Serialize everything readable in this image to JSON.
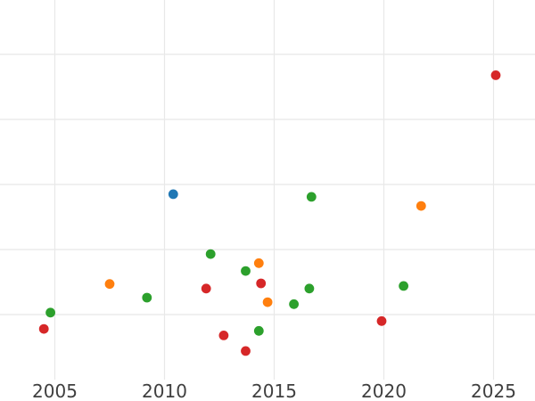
{
  "chart_data": {
    "type": "scatter",
    "title": "",
    "xlabel": "",
    "ylabel": "",
    "grid": true,
    "legend": "none visible",
    "x_tick_labels": [
      "2005",
      "2010",
      "2015",
      "2020",
      "2025"
    ],
    "x_tick_values": [
      2005,
      2010,
      2015,
      2020,
      2025
    ],
    "y_tick_labels": [],
    "y_axis_note": "no y tick labels visible in crop; y values given in gridline units (0 = bottom plot edge, 1 unit per horizontal gridline)",
    "y_gridline_units": [
      1,
      2,
      3,
      4,
      5
    ],
    "xlim": [
      2002.5,
      2026.9
    ],
    "ylim": [
      -0.33,
      5.84
    ],
    "marker": {
      "shape": "circle",
      "radius_px": 5.4
    },
    "series": [
      {
        "name": "blue",
        "color": "#1f77b4",
        "points": [
          [
            2010.4,
            2.85
          ]
        ]
      },
      {
        "name": "orange",
        "color": "#ff7f0e",
        "points": [
          [
            2007.5,
            1.47
          ],
          [
            2014.3,
            1.79
          ],
          [
            2014.7,
            1.19
          ],
          [
            2021.7,
            2.67
          ]
        ]
      },
      {
        "name": "green",
        "color": "#2ca02c",
        "points": [
          [
            2004.8,
            1.03
          ],
          [
            2009.2,
            1.26
          ],
          [
            2012.1,
            1.93
          ],
          [
            2013.7,
            1.67
          ],
          [
            2014.3,
            0.75
          ],
          [
            2015.9,
            1.16
          ],
          [
            2016.6,
            1.4
          ],
          [
            2016.7,
            2.81
          ],
          [
            2020.9,
            1.44
          ]
        ]
      },
      {
        "name": "red",
        "color": "#d62728",
        "points": [
          [
            2004.5,
            0.78
          ],
          [
            2011.9,
            1.4
          ],
          [
            2012.7,
            0.68
          ],
          [
            2013.7,
            0.44
          ],
          [
            2014.4,
            1.48
          ],
          [
            2019.9,
            0.9
          ],
          [
            2025.1,
            4.68
          ]
        ]
      }
    ],
    "colors": {
      "background": "#ffffff",
      "gridline": "#e8e8e8",
      "tick_label": "#3f3f3f"
    }
  }
}
